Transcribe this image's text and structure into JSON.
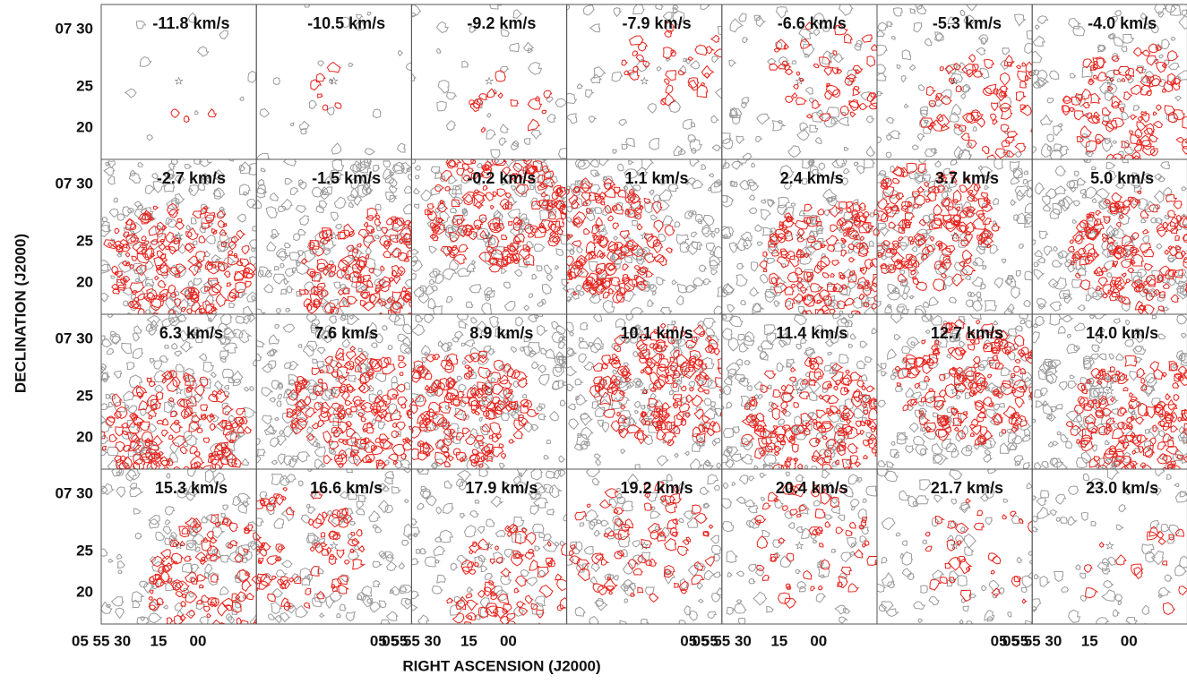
{
  "panels": [
    {
      "label": "-11.8 km/s"
    },
    {
      "label": "-10.5 km/s"
    },
    {
      "label": "-9.2 km/s"
    },
    {
      "label": "-7.9 km/s"
    },
    {
      "label": "-6.6 km/s"
    },
    {
      "label": "-5.3 km/s"
    },
    {
      "label": "-4.0 km/s"
    },
    {
      "label": "-2.7 km/s"
    },
    {
      "label": "-1.5 km/s"
    },
    {
      "label": "-0.2 km/s"
    },
    {
      "label": "1.1 km/s"
    },
    {
      "label": "2.4 km/s"
    },
    {
      "label": "3.7 km/s"
    },
    {
      "label": "5.0 km/s"
    },
    {
      "label": "6.3 km/s"
    },
    {
      "label": "7.6 km/s"
    },
    {
      "label": "8.9 km/s"
    },
    {
      "label": "10.1 km/s"
    },
    {
      "label": "11.4 km/s"
    },
    {
      "label": "12.7 km/s"
    },
    {
      "label": "14.0 km/s"
    },
    {
      "label": "15.3 km/s"
    },
    {
      "label": "16.6 km/s"
    },
    {
      "label": "17.9 km/s"
    },
    {
      "label": "19.2 km/s"
    },
    {
      "label": "20.4 km/s"
    },
    {
      "label": "21.7 km/s"
    },
    {
      "label": "23.0 km/s"
    }
  ],
  "y_axis": {
    "title": "DECLINATION (J2000)",
    "tick_labels": [
      "07 30",
      "25",
      "20"
    ]
  },
  "x_axis": {
    "title": "RIGHT ASCENSION (J2000)",
    "tick_labels": [
      "05 55 30",
      "15",
      "00"
    ],
    "end_label": "05 55"
  }
}
